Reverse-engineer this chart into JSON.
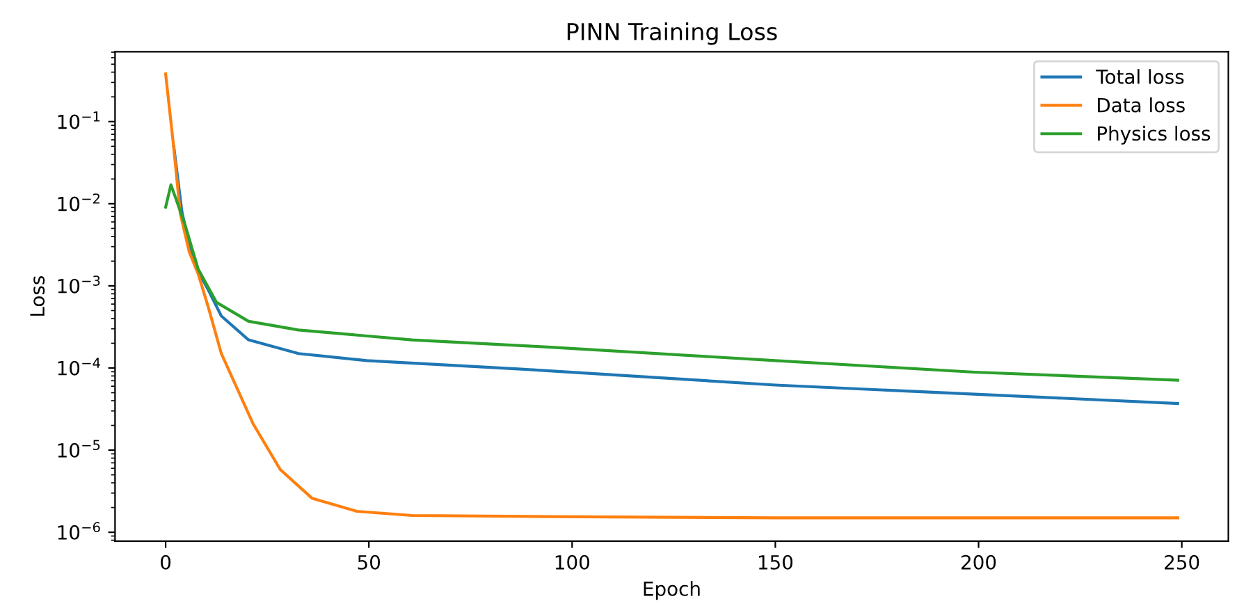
{
  "chart_data": {
    "type": "line",
    "title": "PINN Training Loss",
    "xlabel": "Epoch",
    "ylabel": "Loss",
    "log": "y",
    "legend": "top right",
    "grid": false,
    "xlim": [
      -12.45,
      261.45
    ],
    "xticks": [
      0,
      50,
      100,
      150,
      200,
      250
    ],
    "ylim": [
      7.8e-07,
      0.71
    ],
    "yticks": [
      {
        "value": 1e-06,
        "label": "10$^{−6}$"
      },
      {
        "value": 1e-05,
        "label": "10$^{−5}$"
      },
      {
        "value": 0.0001,
        "label": "10$^{−4}$"
      },
      {
        "value": 0.001,
        "label": "10$^{−3}$"
      },
      {
        "value": 0.01,
        "label": "10$^{−2}$"
      },
      {
        "value": 0.1,
        "label": "10$^{−1}$"
      }
    ],
    "series": [
      {
        "name": "Total loss",
        "color": "#1f77b4",
        "x": [
          2,
          4,
          6,
          8,
          10.3,
          13.7,
          20.4,
          32.7,
          49.5,
          87.5,
          150,
          199,
          249
        ],
        "values": [
          0.05,
          0.008,
          0.0028,
          0.0015,
          0.00093,
          0.00043,
          0.00022,
          0.00015,
          0.000123,
          9.7e-05,
          6.2e-05,
          4.8e-05,
          3.7e-05
        ]
      },
      {
        "name": "Data loss",
        "color": "#ff7f0e",
        "x": [
          0,
          1.9,
          3.6,
          5.8,
          8,
          10.5,
          13.7,
          21.5,
          28.2,
          36,
          47,
          60.6,
          94,
          150,
          249
        ],
        "values": [
          0.38,
          0.053,
          0.0076,
          0.0026,
          0.0014,
          0.00055,
          0.00015,
          2.1e-05,
          5.8e-06,
          2.6e-06,
          1.8e-06,
          1.6e-06,
          1.55e-06,
          1.5e-06,
          1.5e-06
        ]
      },
      {
        "name": "Physics loss",
        "color": "#2ca02c",
        "x": [
          0,
          1.3,
          4.7,
          8,
          12.5,
          20.4,
          32.7,
          60.6,
          94,
          150,
          199,
          249
        ],
        "values": [
          0.0091,
          0.017,
          0.0057,
          0.0016,
          0.00063,
          0.00037,
          0.00029,
          0.00022,
          0.00018,
          0.000123,
          8.9e-05,
          7.1e-05
        ]
      }
    ]
  }
}
